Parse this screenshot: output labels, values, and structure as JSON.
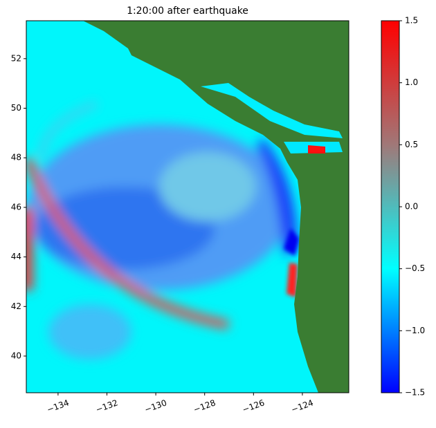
{
  "chart_data": {
    "type": "heatmap",
    "title": "1:20:00 after earthquake",
    "xlim": [
      -135.3,
      -122.1
    ],
    "xticks": [
      {
        "value": -134,
        "label": "−134"
      },
      {
        "value": -132,
        "label": "−132"
      },
      {
        "value": -130,
        "label": "−130"
      },
      {
        "value": -128,
        "label": "−128"
      },
      {
        "value": -126,
        "label": "−126"
      },
      {
        "value": -124,
        "label": "−124"
      }
    ],
    "ylim": [
      38.52,
      53.53
    ],
    "yticks": [
      40,
      42,
      44,
      46,
      48,
      50,
      52
    ],
    "clim": [
      -1.5,
      1.5
    ],
    "cticks": [
      {
        "value": -1.5,
        "label": "−1.5"
      },
      {
        "value": -1.0,
        "label": "−1.0"
      },
      {
        "value": -0.5,
        "label": "−0.5"
      },
      {
        "value": 0.0,
        "label": "0.0"
      },
      {
        "value": 0.5,
        "label": "0.5"
      },
      {
        "value": 1.0,
        "label": "1.0"
      },
      {
        "value": 1.5,
        "label": "1.5"
      }
    ],
    "colormap": [
      "#0000ff",
      "#00ffff",
      "#a07878",
      "#ff0000"
    ],
    "land_color": "#3a7d32"
  }
}
